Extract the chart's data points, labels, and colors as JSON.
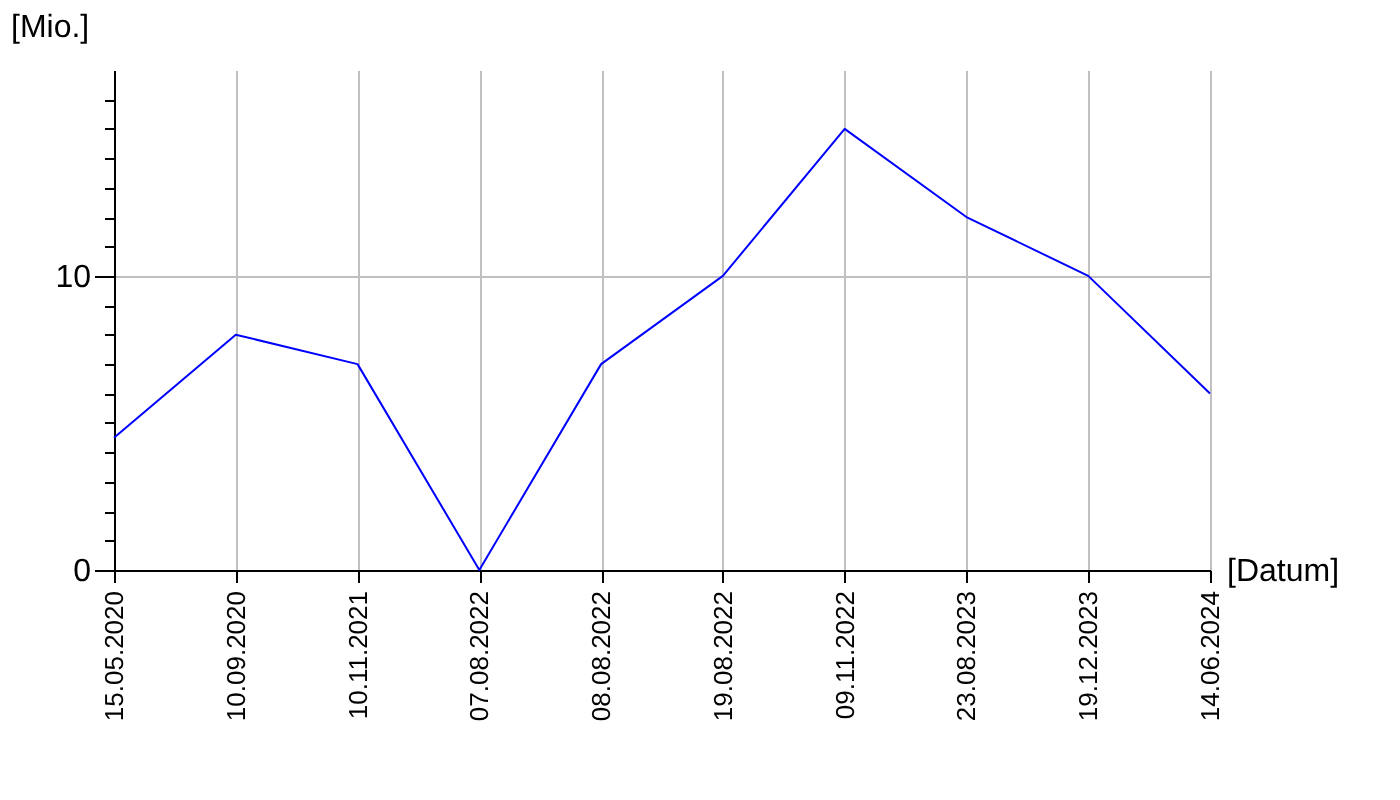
{
  "chart_data": {
    "type": "line",
    "xlabel": "[Datum]",
    "ylabel": "[Mio.]",
    "categories": [
      "15.05.2020",
      "10.09.2020",
      "10.11.2021",
      "07.08.2022",
      "08.08.2022",
      "19.08.2022",
      "09.11.2022",
      "23.08.2023",
      "19.12.2023",
      "14.06.2024"
    ],
    "series": [
      {
        "color": "#0000ff",
        "values": [
          4.5,
          8,
          7,
          0,
          7,
          10,
          15,
          12,
          10,
          6
        ]
      }
    ],
    "ylim": [
      0,
      17
    ],
    "yticks": [
      0,
      {
        "value": 1,
        "label": null
      },
      {
        "value": 2,
        "label": null
      },
      {
        "value": 3,
        "label": null
      },
      {
        "value": 4,
        "label": null
      },
      {
        "value": 5,
        "label": null
      },
      {
        "value": 6,
        "label": null
      },
      {
        "value": 7,
        "label": null
      },
      {
        "value": 8,
        "label": null
      },
      {
        "value": 9,
        "label": null
      },
      10,
      {
        "value": 11,
        "label": null
      },
      {
        "value": 12,
        "label": null
      },
      {
        "value": 13,
        "label": null
      },
      {
        "value": 14,
        "label": null
      },
      {
        "value": 15,
        "label": null
      },
      {
        "value": 16,
        "label": null
      }
    ],
    "grid": true,
    "marker": "none",
    "line_style": "solid"
  }
}
